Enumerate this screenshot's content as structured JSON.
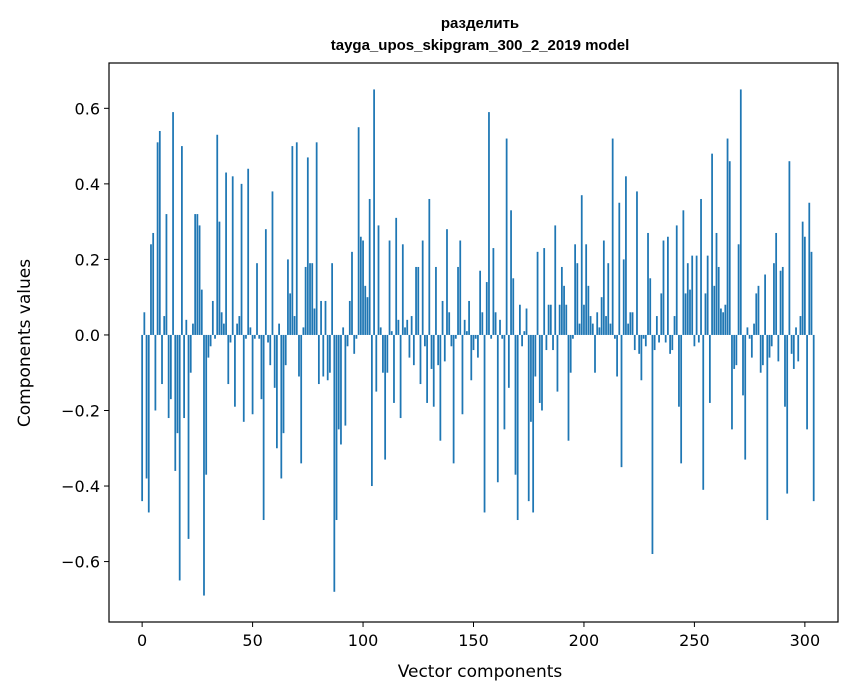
{
  "chart_data": {
    "type": "bar",
    "title": "разделить",
    "subtitle": "tayga_upos_skipgram_300_2_2019 model",
    "xlabel": "Vector components",
    "ylabel": "Components values",
    "xlim": [
      -15,
      315
    ],
    "ylim": [
      -0.76,
      0.72
    ],
    "xticks": [
      0,
      50,
      100,
      150,
      200,
      250,
      300
    ],
    "yticks": [
      -0.6,
      -0.4,
      -0.2,
      0.0,
      0.2,
      0.4,
      0.6
    ],
    "ytick_labels": [
      "−0.6",
      "−0.4",
      "−0.2",
      "0.0",
      "0.2",
      "0.4",
      "0.6"
    ],
    "xtick_labels": [
      "0",
      "50",
      "100",
      "150",
      "200",
      "250",
      "300"
    ],
    "bar_color": "#1f77b4",
    "grid": false,
    "values": [
      -0.44,
      0.06,
      -0.38,
      -0.47,
      0.24,
      0.27,
      -0.2,
      0.51,
      0.54,
      -0.13,
      0.05,
      0.32,
      -0.22,
      -0.17,
      0.59,
      -0.36,
      -0.26,
      -0.65,
      0.5,
      -0.22,
      0.04,
      -0.54,
      -0.1,
      0.03,
      0.32,
      0.32,
      0.29,
      0.12,
      -0.69,
      -0.37,
      -0.06,
      -0.03,
      0.09,
      -0.01,
      0.53,
      0.3,
      0.06,
      0.03,
      0.43,
      -0.13,
      -0.02,
      0.42,
      -0.19,
      0.03,
      0.05,
      0.4,
      -0.23,
      -0.01,
      0.44,
      0.02,
      -0.21,
      -0.01,
      0.19,
      -0.01,
      -0.17,
      -0.49,
      0.28,
      -0.02,
      -0.08,
      0.38,
      -0.14,
      -0.3,
      0.03,
      -0.38,
      -0.26,
      -0.08,
      0.2,
      0.11,
      0.5,
      0.05,
      0.51,
      -0.11,
      -0.34,
      0.02,
      0.18,
      0.47,
      0.19,
      0.19,
      0.07,
      0.51,
      -0.13,
      0.09,
      -0.11,
      0.09,
      -0.12,
      -0.1,
      0.19,
      -0.68,
      -0.49,
      -0.25,
      -0.29,
      0.02,
      -0.24,
      -0.03,
      0.09,
      0.22,
      -0.05,
      -0.01,
      0.55,
      0.26,
      0.25,
      0.13,
      0.1,
      0.36,
      -0.4,
      0.65,
      -0.15,
      0.29,
      0.02,
      -0.1,
      -0.33,
      -0.1,
      0.25,
      0.01,
      -0.18,
      0.31,
      0.04,
      -0.22,
      0.24,
      0.02,
      0.04,
      -0.06,
      0.05,
      -0.08,
      0.18,
      0.18,
      -0.13,
      0.25,
      -0.03,
      -0.18,
      0.36,
      -0.09,
      -0.19,
      0.18,
      -0.08,
      -0.28,
      0.09,
      -0.07,
      0.28,
      0.06,
      -0.03,
      -0.34,
      -0.01,
      0.18,
      0.25,
      -0.21,
      0.04,
      0.01,
      0.09,
      -0.12,
      -0.04,
      -0.01,
      -0.06,
      0.17,
      0.06,
      -0.47,
      0.14,
      0.59,
      -0.01,
      0.23,
      0.06,
      -0.39,
      0.04,
      -0.01,
      -0.25,
      0.52,
      -0.14,
      0.33,
      0.15,
      -0.37,
      -0.49,
      0.08,
      -0.03,
      0.01,
      0.07,
      -0.44,
      -0.23,
      -0.47,
      -0.11,
      0.22,
      -0.18,
      -0.2,
      0.23,
      -0.04,
      0.08,
      0.08,
      -0.04,
      0.29,
      -0.15,
      0.08,
      0.18,
      0.13,
      0.08,
      -0.28,
      -0.1,
      -0.01,
      0.24,
      0.19,
      0.03,
      0.37,
      0.08,
      0.24,
      0.13,
      0.05,
      0.03,
      -0.1,
      0.06,
      0.02,
      0.1,
      0.25,
      0.05,
      0.19,
      0.03,
      0.52,
      -0.01,
      -0.11,
      0.35,
      -0.35,
      0.2,
      0.42,
      0.03,
      0.06,
      0.06,
      -0.04,
      0.38,
      -0.05,
      -0.12,
      -0.01,
      -0.03,
      0.27,
      0.15,
      -0.58,
      -0.04,
      0.05,
      -0.02,
      0.11,
      0.25,
      -0.02,
      0.26,
      -0.05,
      -0.04,
      0.05,
      0.29,
      -0.19,
      -0.34,
      0.33,
      0.11,
      0.19,
      0.12,
      0.21,
      -0.03,
      0.21,
      -0.02,
      0.36,
      -0.41,
      0.11,
      0.21,
      -0.18,
      0.48,
      0.13,
      0.27,
      0.18,
      0.07,
      0.06,
      0.08,
      0.52,
      0.46,
      -0.25,
      -0.09,
      -0.08,
      0.24,
      0.65,
      -0.16,
      -0.33,
      0.02,
      -0.01,
      -0.06,
      0.03,
      0.11,
      0.13,
      -0.1,
      -0.08,
      0.16,
      -0.49,
      -0.06,
      -0.03,
      0.19,
      0.27,
      -0.07,
      0.17,
      0.18,
      -0.19,
      -0.42,
      0.46,
      -0.05,
      -0.09,
      0.02,
      -0.07,
      0.05,
      0.3,
      0.26,
      -0.25,
      0.35,
      0.22,
      -0.44
    ]
  }
}
